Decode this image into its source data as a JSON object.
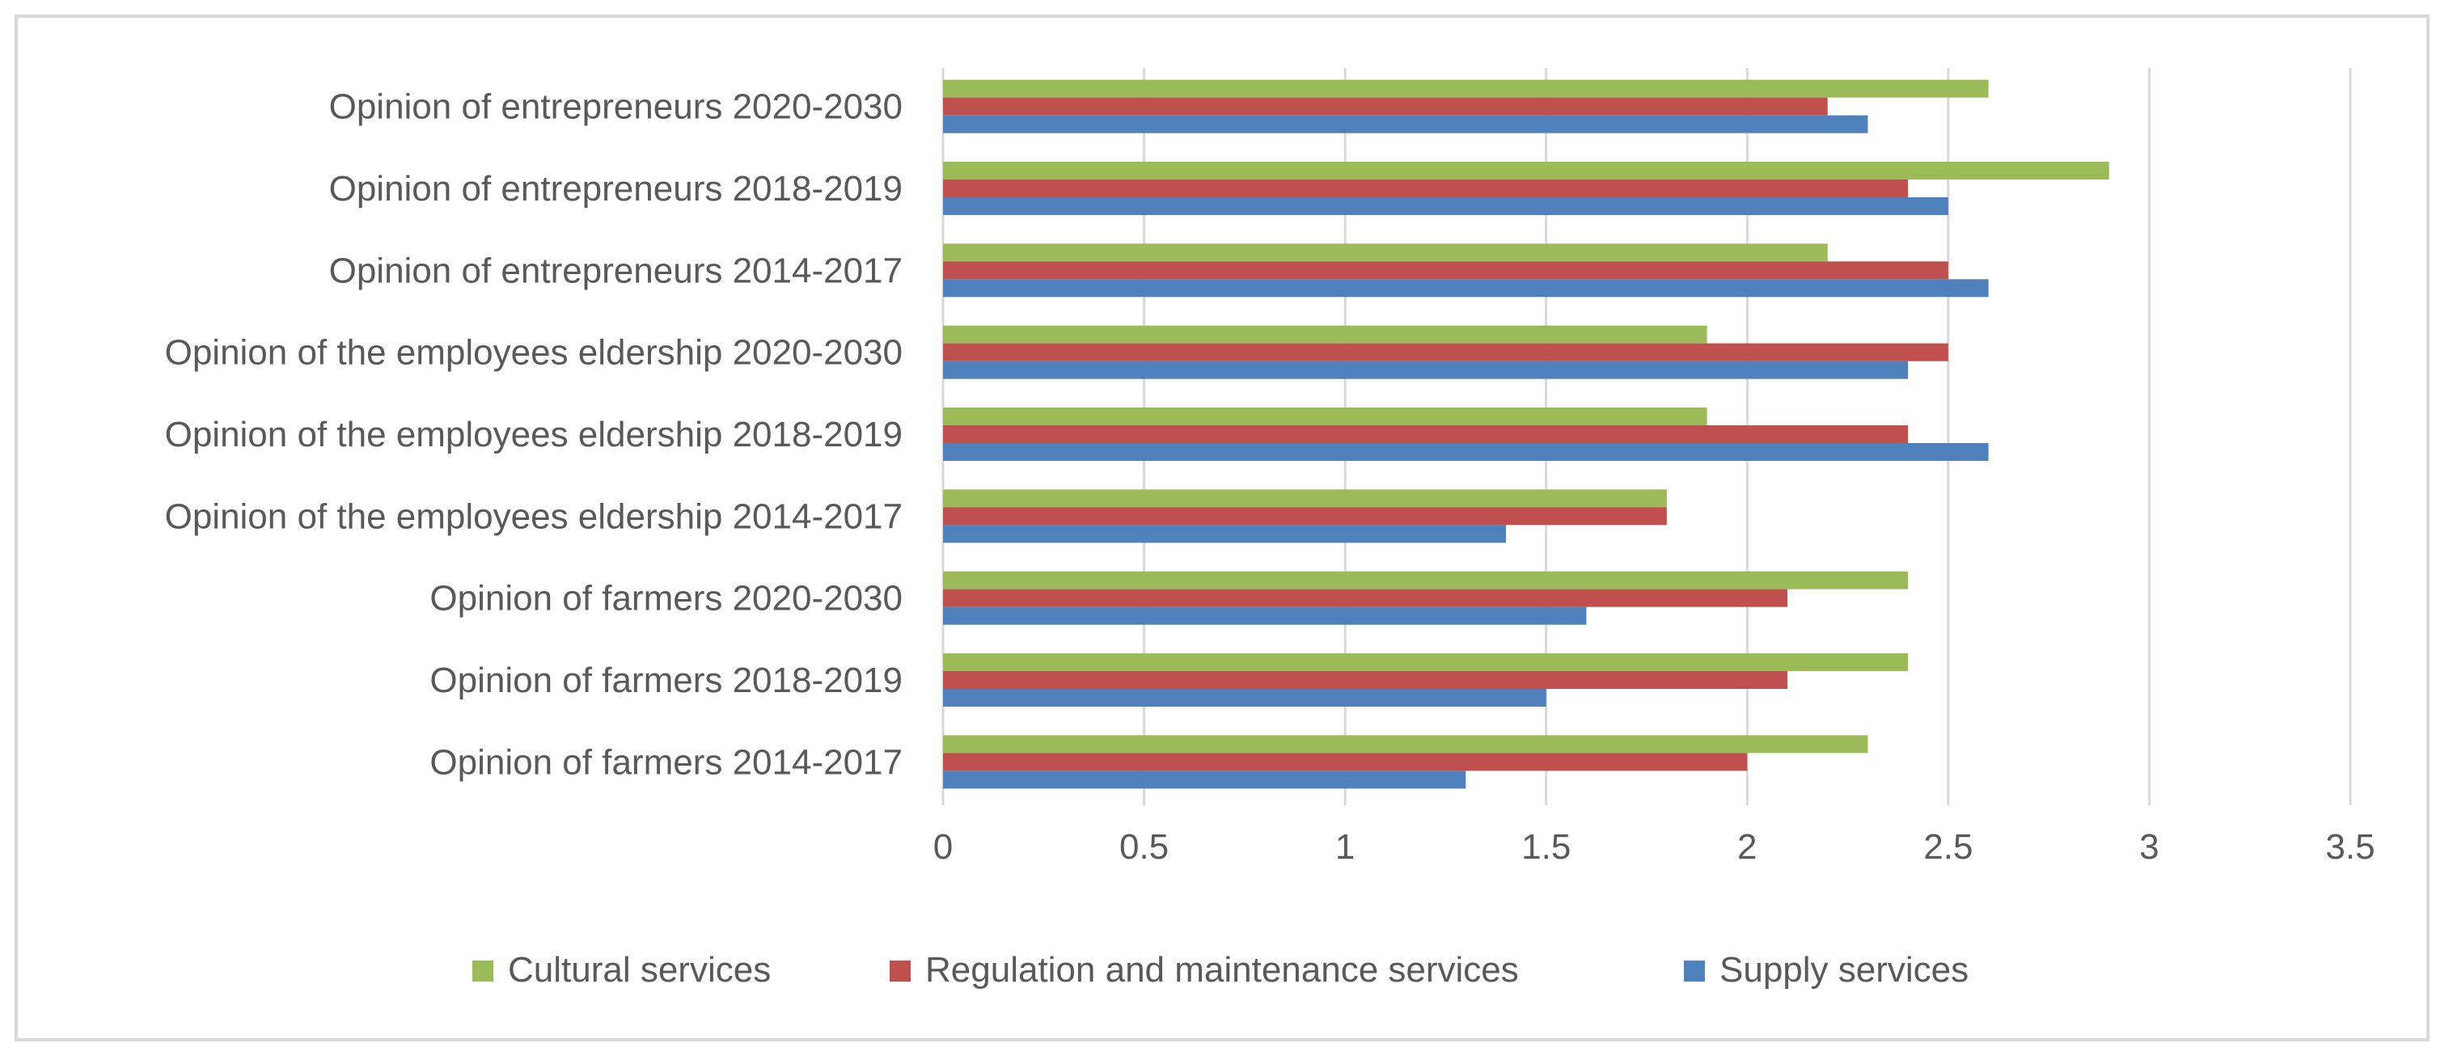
{
  "chart_data": {
    "type": "bar",
    "orientation": "horizontal",
    "title": "",
    "xlabel": "",
    "ylabel": "",
    "xlim": [
      0,
      3.5
    ],
    "x_ticks": [
      0,
      0.5,
      1,
      1.5,
      2,
      2.5,
      3,
      3.5
    ],
    "x_tick_labels": [
      "0",
      "0.5",
      "1",
      "1.5",
      "2",
      "2.5",
      "3",
      "3.5"
    ],
    "grid": "vertical",
    "legend_position": "bottom",
    "categories": [
      "Opinion of entrepreneurs 2020-2030",
      "Opinion of entrepreneurs 2018-2019",
      "Opinion of entrepreneurs 2014-2017",
      "Opinion of the employees eldership 2020-2030",
      "Opinion of the employees eldership 2018-2019",
      "Opinion of the employees eldership 2014-2017",
      "Opinion of farmers 2020-2030",
      "Opinion of farmers 2018-2019",
      "Opinion of farmers 2014-2017"
    ],
    "series": [
      {
        "name": "Cultural services",
        "color": "#9bbb59",
        "values": [
          2.6,
          2.9,
          2.2,
          1.9,
          1.9,
          1.8,
          2.4,
          2.4,
          2.3
        ]
      },
      {
        "name": "Regulation and maintenance services",
        "color": "#c0504d",
        "values": [
          2.2,
          2.4,
          2.5,
          2.5,
          2.4,
          1.8,
          2.1,
          2.1,
          2.0
        ]
      },
      {
        "name": "Supply services",
        "color": "#4f81bd",
        "values": [
          2.3,
          2.5,
          2.6,
          2.4,
          2.6,
          1.4,
          1.6,
          1.5,
          1.3
        ]
      }
    ],
    "legend_order": [
      "Cultural services",
      "Regulation and maintenance services",
      "Supply services"
    ]
  },
  "colors": {
    "gridline": "#d9d9d9",
    "axis_text": "#595959",
    "border": "#d9d9d9"
  }
}
